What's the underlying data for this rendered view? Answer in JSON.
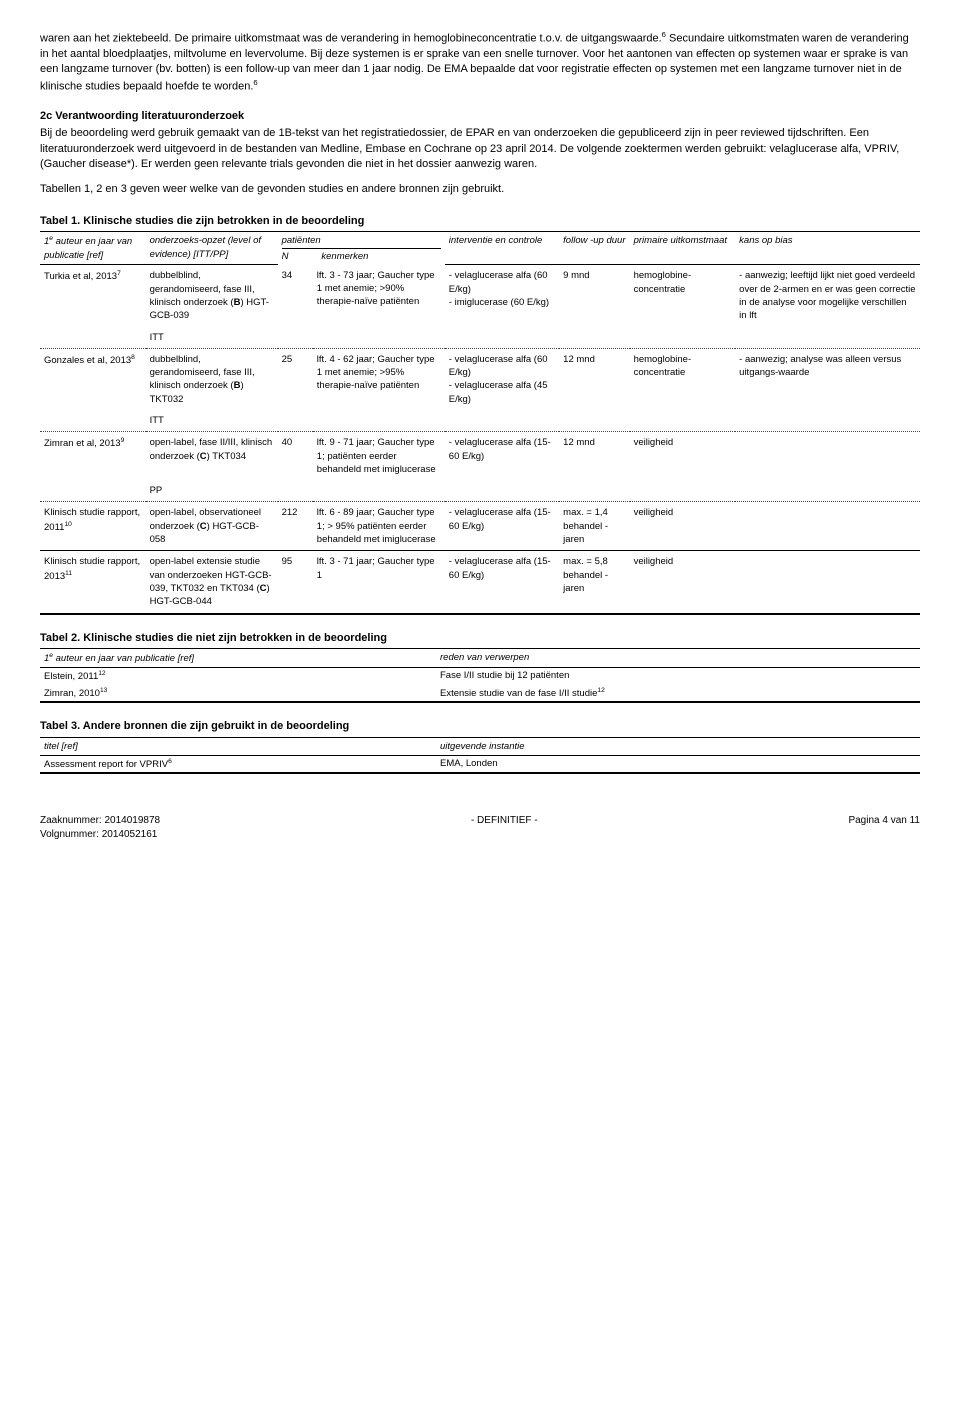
{
  "intro": {
    "p1": "waren aan het ziektebeeld. De primaire uitkomstmaat was de verandering in hemoglobineconcentratie t.o.v. de uitgangswaarde.",
    "p1sup": "6",
    "p1b": " Secundaire uitkomstmaten waren de verandering in het aantal bloedplaatjes, miltvolume en levervolume. Bij deze systemen is er sprake van een snelle turnover. Voor het aantonen van effecten op systemen waar er sprake is van een langzame turnover (bv. botten) is een follow-up van meer dan 1 jaar nodig. De EMA bepaalde dat voor registratie effecten op systemen met een langzame turnover niet in de klinische studies bepaald hoefde te worden.",
    "p1sup2": "6"
  },
  "section2c": {
    "heading": "2c Verantwoording literatuuronderzoek",
    "p1": "Bij de beoordeling werd gebruik gemaakt van de 1B-tekst van het registratiedossier, de EPAR en van onderzoeken die gepubliceerd zijn in peer reviewed tijdschriften. Een literatuuronderzoek werd uitgevoerd in de bestanden van Medline, Embase en Cochrane op 23 april 2014. De volgende zoektermen werden gebruikt: velaglucerase alfa, VPRIV, (Gaucher disease*). Er werden geen relevante trials gevonden die niet in het dossier aanwezig waren.",
    "p2": "Tabellen 1, 2 en 3 geven weer welke van de gevonden studies en andere bronnen zijn gebruikt."
  },
  "table1": {
    "caption": "Tabel 1. Klinische studies die zijn betrokken in de beoordeling",
    "head": {
      "c1a": "1",
      "c1sup": "e",
      "c1b": " auteur en jaar van publicatie [ref]",
      "c2": "onderzoeks-opzet (level of evidence) [ITT/PP]",
      "c3a": "patiënten",
      "c3b": "N",
      "c3c": "kenmerken",
      "c4": "interventie en controle",
      "c5": "follow -up duur",
      "c6": "primaire uitkomstmaat",
      "c7": "kans op bias"
    },
    "rows": [
      {
        "author": "Turkia et al, 2013",
        "authsup": "7",
        "design": "dubbelblind, gerandomiseerd, fase III, klinisch onderzoek (B) HGT-GCB-039",
        "design2": "ITT",
        "n": "34",
        "kenm": "lft. 3 - 73 jaar; Gaucher type 1 met anemie; >90% therapie-naïve patiënten",
        "interv": "- velaglucerase alfa (60 E/kg)\n- imiglucerase (60 E/kg)",
        "follow": "9 mnd",
        "uitk": "hemoglobine-concentratie",
        "bias": "- aanwezig; leeftijd lijkt niet goed verdeeld over de 2-armen en er was geen correctie in de analyse voor mogelijke verschillen in lft"
      },
      {
        "author": "Gonzales et al, 2013",
        "authsup": "8",
        "design": "dubbelblind, gerandomiseerd, fase III, klinisch onderzoek (B) TKT032",
        "design2": "ITT",
        "n": "25",
        "kenm": "lft. 4 - 62 jaar; Gaucher type 1 met anemie; >95% therapie-naïve patiënten",
        "interv": "- velaglucerase alfa (60 E/kg)\n- velaglucerase alfa (45 E/kg)",
        "follow": "12 mnd",
        "uitk": "hemoglobine-concentratie",
        "bias": "- aanwezig; analyse was alleen versus uitgangs-waarde"
      },
      {
        "author": "Zimran et al, 2013",
        "authsup": "9",
        "design": "open-label, fase II/III, klinisch onderzoek (C) TKT034",
        "design2": "PP",
        "n": "40",
        "kenm": "lft. 9 - 71 jaar; Gaucher type 1; patiënten eerder behandeld met imiglucerase",
        "interv": "- velaglucerase alfa (15-60 E/kg)",
        "follow": "12 mnd",
        "uitk": "veiligheid",
        "bias": ""
      },
      {
        "author": "Klinisch studie rapport, 2011",
        "authsup": "10",
        "design": "open-label, observationeel onderzoek (C) HGT-GCB-058",
        "design2": "",
        "n": "212",
        "kenm": "lft. 6 - 89 jaar; Gaucher type 1; > 95% patiënten eerder behandeld met imiglucerase",
        "interv": "- velaglucerase alfa (15-60 E/kg)",
        "follow": "max. = 1,4 behandel -jaren",
        "uitk": "veiligheid",
        "bias": ""
      },
      {
        "author": "Klinisch studie rapport, 2013",
        "authsup": "11",
        "design": "open-label extensie studie van onderzoeken HGT-GCB-039, TKT032 en TKT034 (C) HGT-GCB-044",
        "design2": "",
        "n": "95",
        "kenm": "lft. 3 - 71 jaar; Gaucher type 1",
        "interv": "- velaglucerase alfa (15-60 E/kg)",
        "follow": "max. = 5,8 behandel -jaren",
        "uitk": "veiligheid",
        "bias": ""
      }
    ]
  },
  "table2": {
    "caption": "Tabel 2. Klinische studies die niet zijn betrokken in de beoordeling",
    "head": {
      "c1a": "1",
      "c1sup": "e",
      "c1b": " auteur en jaar van publicatie [ref]",
      "c2": "reden van verwerpen"
    },
    "rows": [
      {
        "c1": "Elstein, 2011",
        "c1sup": "12",
        "c2": "Fase I/II studie bij 12 patiënten"
      },
      {
        "c1": "Zimran, 2010",
        "c1sup": "13",
        "c2": "Extensie studie van de fase I/II studie",
        "c2sup": "12"
      }
    ]
  },
  "table3": {
    "caption": "Tabel 3. Andere bronnen die zijn gebruikt in de beoordeling",
    "head": {
      "c1": "titel [ref]",
      "c2": "uitgevende instantie"
    },
    "rows": [
      {
        "c1": "Assessment report for VPRIV",
        "c1sup": "6",
        "c2": "EMA, Londen"
      }
    ]
  },
  "footer": {
    "zaak_label": "Zaaknummer: ",
    "zaak": "2014019878",
    "volg_label": "Volgnummer: ",
    "volg": "2014052161",
    "center": "- DEFINITIEF -",
    "right": "Pagina 4 van 11"
  }
}
